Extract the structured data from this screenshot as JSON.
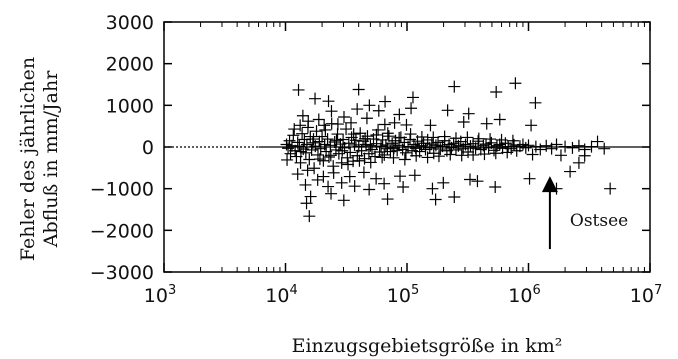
{
  "chart_data": {
    "type": "scatter",
    "xlabel": "Einzugsgebietsgröße in km²",
    "ylabel_lines": [
      "Fehler des jährlichen",
      "Abfluß in mm/Jahr"
    ],
    "x_scale": "log",
    "xlim": [
      1000,
      10000000
    ],
    "ylim": [
      -3000,
      3000
    ],
    "x_ticks": [
      {
        "base": "10",
        "exp": "3"
      },
      {
        "base": "10",
        "exp": "4"
      },
      {
        "base": "10",
        "exp": "5"
      },
      {
        "base": "10",
        "exp": "6"
      },
      {
        "base": "10",
        "exp": "7"
      }
    ],
    "x_tick_values": [
      1000,
      10000,
      100000,
      1000000,
      10000000
    ],
    "y_ticks": [
      "3000",
      "2000",
      "1000",
      "0",
      "−1000",
      "−2000",
      "−3000"
    ],
    "y_tick_values": [
      3000,
      2000,
      1000,
      0,
      -1000,
      -2000,
      -3000
    ],
    "grid": false,
    "legend": "none",
    "marker": "plus",
    "zero_line": true,
    "annotation": {
      "text": "Ostsee",
      "x": 1500000,
      "y_from": -2450,
      "y_to": -700
    },
    "points": [
      [
        10200,
        60
      ],
      [
        10500,
        -30
      ],
      [
        10800,
        150
      ],
      [
        11000,
        -160
      ],
      [
        11300,
        30
      ],
      [
        11600,
        280
      ],
      [
        12000,
        -90
      ],
      [
        12300,
        -230
      ],
      [
        12600,
        110
      ],
      [
        13000,
        20
      ],
      [
        13300,
        -380
      ],
      [
        13700,
        320
      ],
      [
        14000,
        -50
      ],
      [
        14300,
        180
      ],
      [
        14700,
        -140
      ],
      [
        15000,
        60
      ],
      [
        15300,
        470
      ],
      [
        15700,
        -300
      ],
      [
        16000,
        250
      ],
      [
        16400,
        -70
      ],
      [
        16800,
        100
      ],
      [
        17200,
        -510
      ],
      [
        17600,
        20
      ],
      [
        18000,
        380
      ],
      [
        18500,
        -190
      ],
      [
        19000,
        130
      ],
      [
        19500,
        -40
      ],
      [
        20000,
        250
      ],
      [
        20500,
        -330
      ],
      [
        21000,
        60
      ],
      [
        21600,
        -110
      ],
      [
        22200,
        190
      ],
      [
        22800,
        -240
      ],
      [
        23400,
        40
      ],
      [
        24000,
        560
      ],
      [
        24700,
        -460
      ],
      [
        25400,
        120
      ],
      [
        26000,
        -70
      ],
      [
        26800,
        310
      ],
      [
        27500,
        -160
      ],
      [
        28300,
        70
      ],
      [
        29000,
        -380
      ],
      [
        29800,
        180
      ],
      [
        30600,
        -20
      ],
      [
        31500,
        430
      ],
      [
        32300,
        -260
      ],
      [
        33200,
        90
      ],
      [
        34100,
        -130
      ],
      [
        35000,
        230
      ],
      [
        36000,
        -340
      ],
      [
        37000,
        50
      ],
      [
        38000,
        160
      ],
      [
        39000,
        -210
      ],
      [
        40100,
        10
      ],
      [
        41200,
        330
      ],
      [
        42300,
        -90
      ],
      [
        43500,
        140
      ],
      [
        44700,
        -280
      ],
      [
        46000,
        60
      ],
      [
        47300,
        260
      ],
      [
        48600,
        -160
      ],
      [
        50000,
        30
      ],
      [
        51500,
        -60
      ],
      [
        53000,
        190
      ],
      [
        54600,
        -230
      ],
      [
        56200,
        80
      ],
      [
        57800,
        410
      ],
      [
        59500,
        -120
      ],
      [
        61200,
        20
      ],
      [
        63000,
        170
      ],
      [
        65000,
        -190
      ],
      [
        67000,
        50
      ],
      [
        69000,
        -40
      ],
      [
        71000,
        260
      ],
      [
        73000,
        -110
      ],
      [
        75500,
        90
      ],
      [
        78000,
        -30
      ],
      [
        80500,
        150
      ],
      [
        83000,
        -80
      ],
      [
        86000,
        40
      ],
      [
        89000,
        230
      ],
      [
        92000,
        -60
      ],
      [
        95000,
        110
      ],
      [
        98000,
        -140
      ],
      [
        102000,
        10
      ],
      [
        106000,
        180
      ],
      [
        110000,
        -90
      ],
      [
        114000,
        60
      ],
      [
        118000,
        -30
      ],
      [
        122000,
        140
      ],
      [
        127000,
        -110
      ],
      [
        132000,
        30
      ],
      [
        137000,
        90
      ],
      [
        142000,
        -60
      ],
      [
        148000,
        170
      ],
      [
        154000,
        -20
      ],
      [
        160000,
        70
      ],
      [
        166000,
        -150
      ],
      [
        173000,
        40
      ],
      [
        180000,
        110
      ],
      [
        188000,
        -50
      ],
      [
        196000,
        20
      ],
      [
        204000,
        150
      ],
      [
        213000,
        -90
      ],
      [
        222000,
        60
      ],
      [
        232000,
        -20
      ],
      [
        242000,
        90
      ],
      [
        253000,
        -70
      ],
      [
        265000,
        30
      ],
      [
        277000,
        130
      ],
      [
        290000,
        -40
      ],
      [
        303000,
        60
      ],
      [
        318000,
        -120
      ],
      [
        333000,
        20
      ],
      [
        350000,
        80
      ],
      [
        367000,
        -30
      ],
      [
        385000,
        140
      ],
      [
        405000,
        -60
      ],
      [
        425000,
        40
      ],
      [
        447000,
        70
      ],
      [
        470000,
        -20
      ],
      [
        495000,
        100
      ],
      [
        520000,
        -80
      ],
      [
        550000,
        30
      ],
      [
        580000,
        60
      ],
      [
        612000,
        -30
      ],
      [
        645000,
        90
      ],
      [
        680000,
        10
      ],
      [
        720000,
        -40
      ],
      [
        760000,
        50
      ],
      [
        800000,
        -90
      ],
      [
        850000,
        20
      ],
      [
        900000,
        60
      ],
      [
        950000,
        -20
      ],
      [
        1000000,
        40
      ],
      [
        1080000,
        -180
      ],
      [
        1150000,
        10
      ],
      [
        1250000,
        -60
      ],
      [
        1400000,
        30
      ],
      [
        1550000,
        -40
      ],
      [
        1700000,
        60
      ],
      [
        1850000,
        -200
      ],
      [
        2000000,
        10
      ],
      [
        2300000,
        -20
      ],
      [
        2600000,
        30
      ],
      [
        2900000,
        -60
      ],
      [
        3300000,
        10
      ],
      [
        3700000,
        130
      ],
      [
        4200000,
        -40
      ],
      [
        10300,
        -310
      ],
      [
        11800,
        430
      ],
      [
        13400,
        -110
      ],
      [
        15200,
        -560
      ],
      [
        17000,
        190
      ],
      [
        19200,
        -290
      ],
      [
        21300,
        410
      ],
      [
        23600,
        -200
      ],
      [
        26300,
        160
      ],
      [
        29300,
        -90
      ],
      [
        32700,
        -420
      ],
      [
        36400,
        310
      ],
      [
        40600,
        -330
      ],
      [
        45200,
        200
      ],
      [
        50300,
        -370
      ],
      [
        56000,
        290
      ],
      [
        62400,
        -250
      ],
      [
        69500,
        330
      ],
      [
        77400,
        -260
      ],
      [
        86200,
        220
      ],
      [
        96000,
        -300
      ],
      [
        107000,
        310
      ],
      [
        119000,
        -210
      ],
      [
        132600,
        240
      ],
      [
        147700,
        -250
      ],
      [
        164500,
        230
      ],
      [
        183200,
        -220
      ],
      [
        204000,
        250
      ],
      [
        227000,
        -180
      ],
      [
        253000,
        210
      ],
      [
        282000,
        -200
      ],
      [
        314000,
        230
      ],
      [
        350000,
        -190
      ],
      [
        390000,
        200
      ],
      [
        434000,
        -170
      ],
      [
        483000,
        190
      ],
      [
        538000,
        -150
      ],
      [
        600000,
        170
      ],
      [
        668000,
        -130
      ],
      [
        744000,
        150
      ],
      [
        13200,
        520
      ],
      [
        13900,
        750
      ],
      [
        15400,
        620
      ],
      [
        18800,
        660
      ],
      [
        20800,
        520
      ],
      [
        23900,
        860
      ],
      [
        27000,
        550
      ],
      [
        30300,
        720
      ],
      [
        34600,
        580
      ],
      [
        38900,
        910
      ],
      [
        46800,
        690
      ],
      [
        49000,
        1000
      ],
      [
        58600,
        870
      ],
      [
        65700,
        540
      ],
      [
        79000,
        580
      ],
      [
        86500,
        780
      ],
      [
        99000,
        530
      ],
      [
        108000,
        930
      ],
      [
        156000,
        520
      ],
      [
        216000,
        880
      ],
      [
        293000,
        600
      ],
      [
        322000,
        800
      ],
      [
        453000,
        560
      ],
      [
        580000,
        660
      ],
      [
        1050000,
        520
      ],
      [
        12800,
        1370
      ],
      [
        17500,
        1160
      ],
      [
        22600,
        1100
      ],
      [
        40000,
        1380
      ],
      [
        66000,
        1090
      ],
      [
        112000,
        1190
      ],
      [
        245000,
        1450
      ],
      [
        542000,
        1320
      ],
      [
        780000,
        1530
      ],
      [
        1140000,
        1060
      ],
      [
        12600,
        -650
      ],
      [
        14600,
        -910
      ],
      [
        16100,
        -1190
      ],
      [
        18400,
        -790
      ],
      [
        20500,
        -710
      ],
      [
        22400,
        -950
      ],
      [
        24900,
        -620
      ],
      [
        29000,
        -860
      ],
      [
        33800,
        -710
      ],
      [
        37100,
        -940
      ],
      [
        44200,
        -610
      ],
      [
        48800,
        -1020
      ],
      [
        55700,
        -760
      ],
      [
        64800,
        -880
      ],
      [
        87600,
        -700
      ],
      [
        92900,
        -960
      ],
      [
        116000,
        -680
      ],
      [
        162000,
        -1000
      ],
      [
        199000,
        -860
      ],
      [
        245000,
        -1200
      ],
      [
        330000,
        -780
      ],
      [
        532000,
        -960
      ],
      [
        1020000,
        -760
      ],
      [
        1700000,
        -1000
      ],
      [
        4700000,
        -1000
      ],
      [
        15700,
        -1660
      ],
      [
        14900,
        -1350
      ],
      [
        23700,
        -1120
      ],
      [
        30200,
        -1280
      ],
      [
        69200,
        -1250
      ],
      [
        172000,
        -1260
      ],
      [
        380000,
        -820
      ],
      [
        2200000,
        -590
      ],
      [
        2600000,
        -380
      ],
      [
        2900000,
        -210
      ]
    ]
  }
}
